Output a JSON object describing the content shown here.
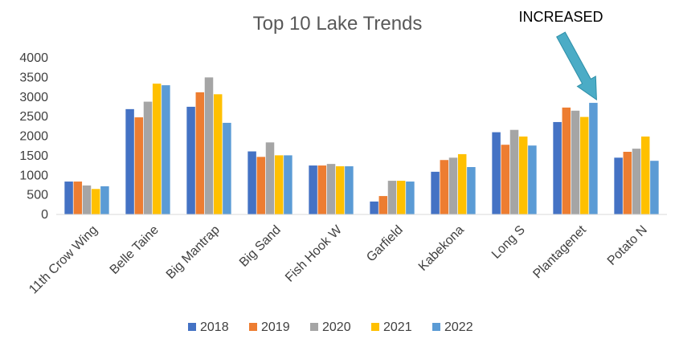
{
  "chart_data": {
    "type": "bar",
    "title": "Top 10 Lake Trends",
    "xlabel": "",
    "ylabel": "",
    "ylim": [
      0,
      4000
    ],
    "yticks": [
      0,
      500,
      1000,
      1500,
      2000,
      2500,
      3000,
      3500,
      4000
    ],
    "grid": false,
    "legend_position": "bottom",
    "categories": [
      "11th Crow Wing",
      "Belle Taine",
      "Big Mantrap",
      "Big Sand",
      "Fish Hook W",
      "Garfield",
      "Kabekona",
      "Long S",
      "Plantagenet",
      "Potato N"
    ],
    "series": [
      {
        "name": "2018",
        "color": "#4472C4",
        "values": [
          840,
          2690,
          2750,
          1610,
          1250,
          330,
          1090,
          2100,
          2360,
          1450
        ]
      },
      {
        "name": "2019",
        "color": "#ED7D31",
        "values": [
          840,
          2480,
          3120,
          1470,
          1250,
          470,
          1390,
          1780,
          2730,
          1600
        ]
      },
      {
        "name": "2020",
        "color": "#A5A5A5",
        "values": [
          740,
          2880,
          3500,
          1840,
          1290,
          860,
          1450,
          2160,
          2650,
          1680
        ]
      },
      {
        "name": "2021",
        "color": "#FFC000",
        "values": [
          650,
          3340,
          3070,
          1510,
          1230,
          860,
          1540,
          1990,
          2490,
          1990
        ]
      },
      {
        "name": "2022",
        "color": "#5B9BD5",
        "values": [
          720,
          3300,
          2340,
          1510,
          1230,
          840,
          1210,
          1760,
          2850,
          1370
        ]
      }
    ],
    "annotation": {
      "text": "INCREASED",
      "target_category": "Plantagenet",
      "target_series": "2022",
      "arrow_color": "#4BACC6"
    }
  }
}
